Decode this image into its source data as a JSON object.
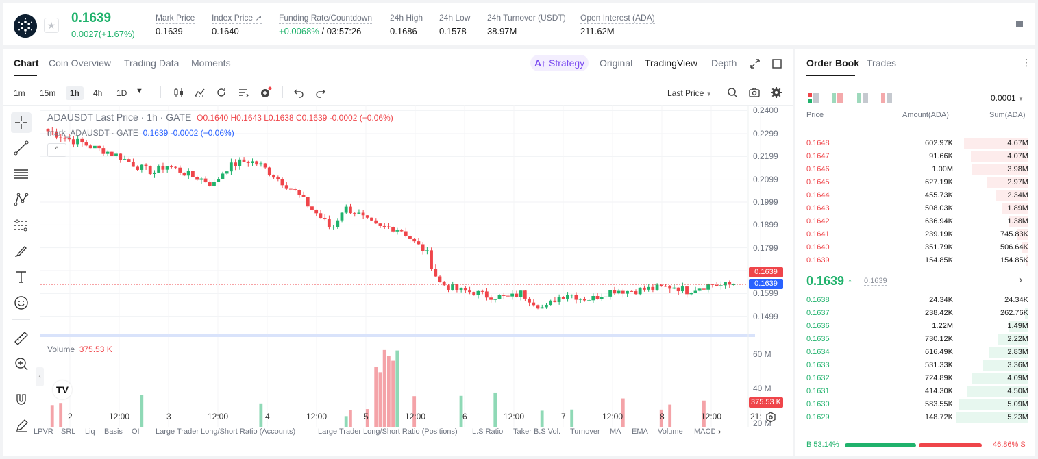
{
  "ticker": {
    "last_price": "0.1639",
    "change": "0.0027(+1.67%)",
    "stats": [
      {
        "label": "Mark Price",
        "value": "0.1639"
      },
      {
        "label": "Index Price",
        "value": "0.1640"
      },
      {
        "label": "Funding Rate/Countdown",
        "value_rate": "+0.0068%",
        "value_countdown": "/ 03:57:26"
      },
      {
        "label": "24h High",
        "value": "0.1686"
      },
      {
        "label": "24h Low",
        "value": "0.1578"
      },
      {
        "label": "24h Turnover (USDT)",
        "value": "38.97M"
      },
      {
        "label": "Open Interest (ADA)",
        "value": "211.62M"
      }
    ]
  },
  "chart_tabs": [
    "Chart",
    "Coin Overview",
    "Trading Data",
    "Moments"
  ],
  "view_tabs": {
    "strategy": "Strategy",
    "original": "Original",
    "tradingview": "TradingView",
    "depth": "Depth"
  },
  "timeframes": [
    "1m",
    "15m",
    "1h",
    "4h",
    "1D"
  ],
  "price_source": "Last Price",
  "legend": {
    "symbol": "ADAUSDT Last Price · 1h · GATE",
    "o_label": "O",
    "o": "0.1640",
    "h_label": "H",
    "h": "0.1643",
    "l_label": "L",
    "l": "0.1638",
    "c_label": "C",
    "c": "0.1639",
    "chg": "-0.0002 (−0.06%)",
    "mark_name": "mark_ADAUSDT · GATE",
    "mark_price": "0.1639",
    "mark_chg": "-0.0002 (−0.06%)"
  },
  "volume_legend": {
    "label": "Volume",
    "value": "375.53 K"
  },
  "price_axis": [
    "0.2400",
    "0.2299",
    "0.2199",
    "0.2099",
    "0.1999",
    "0.1899",
    "0.1799",
    "0.1599",
    "0.1499"
  ],
  "price_tags": {
    "last": "0.1639",
    "mark": "0.1639",
    "volume": "375.53 K"
  },
  "volume_axis": [
    "60 M",
    "40 M",
    "20 M"
  ],
  "time_axis": [
    "2",
    "12:00",
    "3",
    "12:00",
    "4",
    "12:00",
    "5",
    "12:00",
    "6",
    "12:00",
    "7",
    "12:00",
    "8",
    "12:00",
    "21:"
  ],
  "indicator_tabs": [
    "LPVR",
    "SRL",
    "Liq",
    "Basis",
    "OI",
    "Large Trader Long/Short Ratio (Accounts)",
    "Large Trader Long/Short Ratio (Positions)",
    "L.S Ratio",
    "Taker B.S Vol.",
    "Turnover",
    "MA",
    "EMA",
    "Volume",
    "MACD"
  ],
  "colors": {
    "up": "#20b26c",
    "down": "#ef454a",
    "accent": "#7b4cf0",
    "mark_tag": "#2962ff"
  },
  "order_book": {
    "tabs": [
      "Order Book",
      "Trades"
    ],
    "precision": "0.0001",
    "headers": {
      "price": "Price",
      "amount": "Amount(ADA)",
      "sum": "Sum(ADA)"
    },
    "asks": [
      {
        "price": "0.1648",
        "amount": "602.97K",
        "sum": "4.67M",
        "depth": 0.9
      },
      {
        "price": "0.1647",
        "amount": "91.66K",
        "sum": "4.07M",
        "depth": 0.8
      },
      {
        "price": "0.1646",
        "amount": "1.00M",
        "sum": "3.98M",
        "depth": 0.78
      },
      {
        "price": "0.1645",
        "amount": "627.19K",
        "sum": "2.97M",
        "depth": 0.58
      },
      {
        "price": "0.1644",
        "amount": "455.73K",
        "sum": "2.34M",
        "depth": 0.46
      },
      {
        "price": "0.1643",
        "amount": "508.03K",
        "sum": "1.89M",
        "depth": 0.37
      },
      {
        "price": "0.1642",
        "amount": "636.94K",
        "sum": "1.38M",
        "depth": 0.27
      },
      {
        "price": "0.1641",
        "amount": "239.19K",
        "sum": "745.83K",
        "depth": 0.15
      },
      {
        "price": "0.1640",
        "amount": "351.79K",
        "sum": "506.64K",
        "depth": 0.1
      },
      {
        "price": "0.1639",
        "amount": "154.85K",
        "sum": "154.85K",
        "depth": 0.03
      }
    ],
    "mid": {
      "price": "0.1639",
      "arrow": "↑",
      "mark": "0.1639"
    },
    "bids": [
      {
        "price": "0.1638",
        "amount": "24.34K",
        "sum": "24.34K",
        "depth": 0.005
      },
      {
        "price": "0.1637",
        "amount": "238.42K",
        "sum": "262.76K",
        "depth": 0.05
      },
      {
        "price": "0.1636",
        "amount": "1.22M",
        "sum": "1.49M",
        "depth": 0.28
      },
      {
        "price": "0.1635",
        "amount": "730.12K",
        "sum": "2.22M",
        "depth": 0.42
      },
      {
        "price": "0.1634",
        "amount": "616.49K",
        "sum": "2.83M",
        "depth": 0.54
      },
      {
        "price": "0.1633",
        "amount": "531.33K",
        "sum": "3.36M",
        "depth": 0.64
      },
      {
        "price": "0.1632",
        "amount": "724.89K",
        "sum": "4.09M",
        "depth": 0.78
      },
      {
        "price": "0.1631",
        "amount": "414.30K",
        "sum": "4.50M",
        "depth": 0.86
      },
      {
        "price": "0.1630",
        "amount": "583.55K",
        "sum": "5.09M",
        "depth": 0.97
      },
      {
        "price": "0.1629",
        "amount": "148.72K",
        "sum": "5.23M",
        "depth": 1.0
      }
    ],
    "ratio": {
      "buy_label": "B",
      "buy": "53.14%",
      "sell": "46.86%",
      "sell_label": "S",
      "buy_frac": 0.5314
    }
  },
  "chart_data": {
    "type": "candlestick",
    "title": "ADAUSDT Last Price · 1h · GATE",
    "ylim": [
      0.145,
      0.2425
    ],
    "volume_ylim": [
      0,
      67
    ],
    "x_labels": [
      "2",
      "12:00",
      "3",
      "12:00",
      "4",
      "12:00",
      "5",
      "12:00",
      "6",
      "12:00",
      "7",
      "12:00",
      "8",
      "12:00",
      "21:"
    ],
    "close_path": [
      0.231,
      0.229,
      0.227,
      0.2255,
      0.2235,
      0.222,
      0.22,
      0.217,
      0.2145,
      0.213,
      0.216,
      0.214,
      0.2115,
      0.21,
      0.2075,
      0.2145,
      0.217,
      0.218,
      0.216,
      0.212,
      0.208,
      0.204,
      0.1985,
      0.1935,
      0.188,
      0.1975,
      0.1955,
      0.1915,
      0.1885,
      0.189,
      0.1875,
      0.182,
      0.178,
      0.165,
      0.1625,
      0.161,
      0.1605,
      0.159,
      0.1585,
      0.158,
      0.16,
      0.1565,
      0.153,
      0.158,
      0.16,
      0.158,
      0.1575,
      0.16,
      0.1615,
      0.161,
      0.1615,
      0.162,
      0.1625,
      0.163,
      0.161,
      0.1625,
      0.164,
      0.1633,
      0.1639
    ],
    "last_price": 0.1639
  }
}
